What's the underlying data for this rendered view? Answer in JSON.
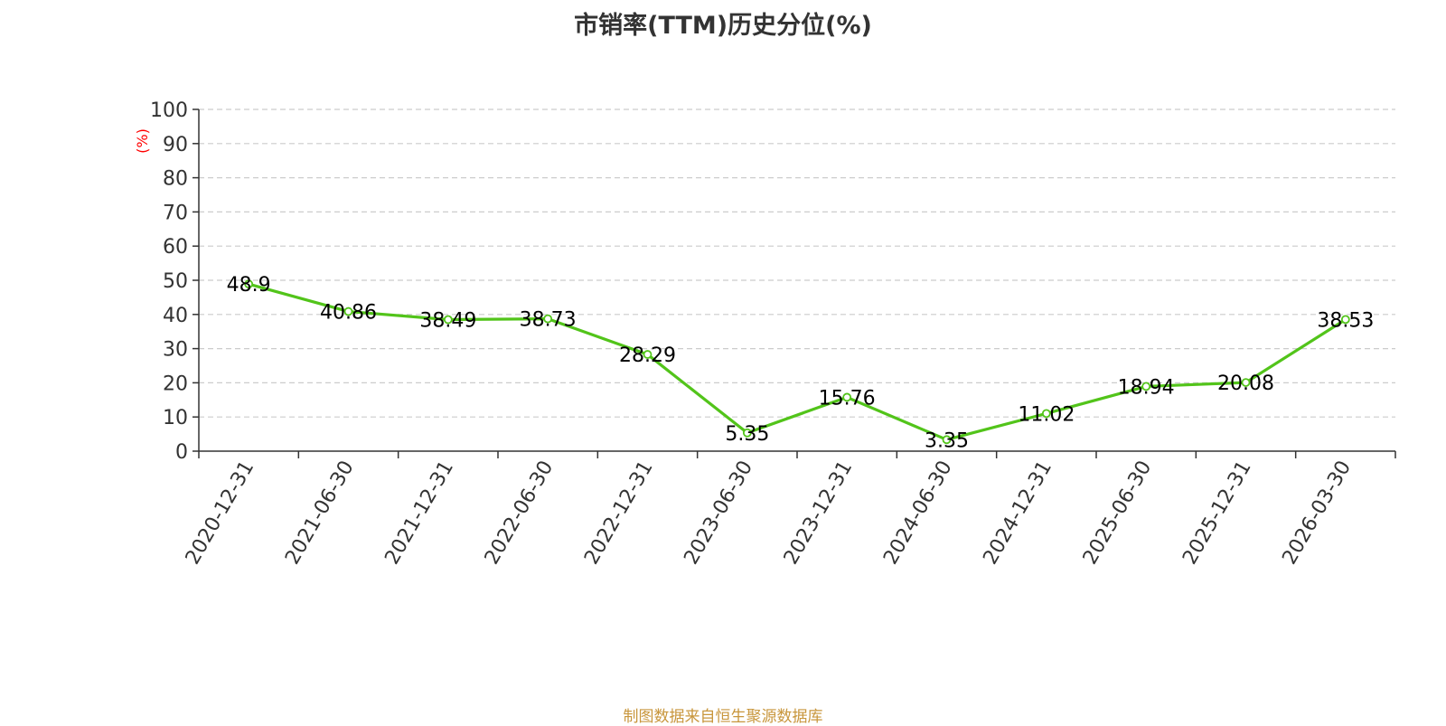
{
  "chart_data": {
    "type": "line",
    "title": "市销率(TTM)历史分位(%)",
    "ylabel": "(%)",
    "xlabel": "",
    "ylim": [
      0,
      100
    ],
    "yticks": [
      0,
      10,
      20,
      30,
      40,
      50,
      60,
      70,
      80,
      90,
      100
    ],
    "grid": true,
    "categories": [
      "2020-12-31",
      "2021-06-30",
      "2021-12-31",
      "2022-06-30",
      "2022-12-31",
      "2023-06-30",
      "2023-12-31",
      "2024-06-30",
      "2024-12-31",
      "2025-06-30",
      "2025-12-31",
      "2026-03-30"
    ],
    "series": [
      {
        "values": [
          48.9,
          40.86,
          38.49,
          38.73,
          28.29,
          5.35,
          15.76,
          3.35,
          11.02,
          18.94,
          20.08,
          38.53
        ],
        "labels": [
          "48.9",
          "40.86",
          "38.49",
          "38.73",
          "28.29",
          "5.35",
          "15.76",
          "3.35",
          "11.02",
          "18.94",
          "20.08",
          "38.53"
        ]
      }
    ]
  },
  "colors": {
    "line": "#52c41a",
    "axis": "#333333",
    "grid": "#cccccc",
    "ylabel": "#ff0000",
    "source": "#c8963c"
  },
  "source_text": "制图数据来自恒生聚源数据库"
}
